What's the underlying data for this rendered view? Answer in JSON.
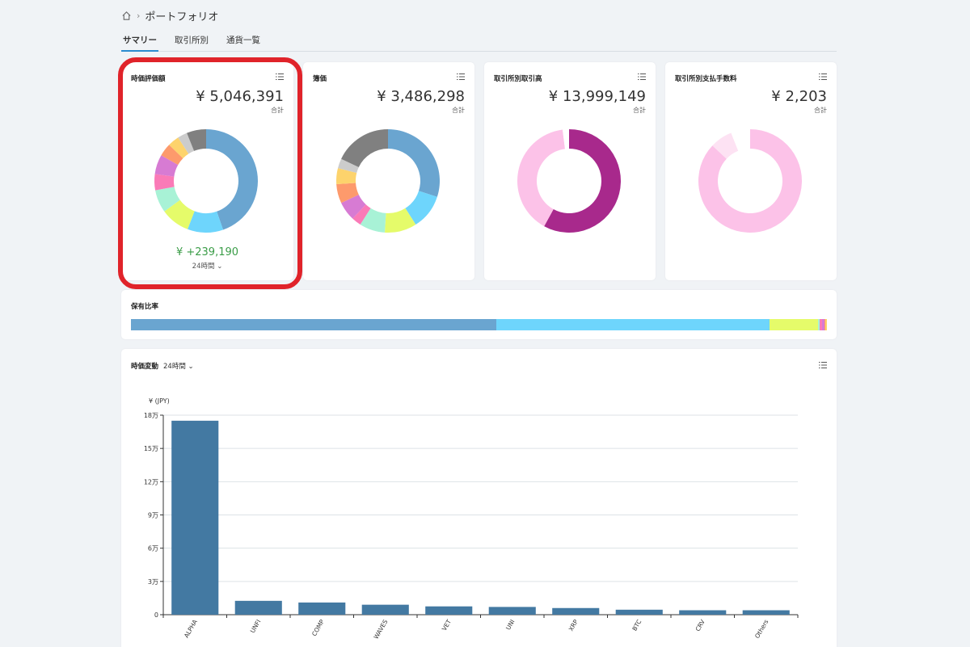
{
  "breadcrumb": {
    "current": "ポートフォリオ"
  },
  "tabs": [
    {
      "label": "サマリー",
      "active": true
    },
    {
      "label": "取引所別",
      "active": false
    },
    {
      "label": "通貨一覧",
      "active": false
    }
  ],
  "cards": [
    {
      "title": "時価評価額",
      "amount": "¥ 5,046,391",
      "sub": "合計",
      "change": "¥ +239,190",
      "period": "24時間 ⌄",
      "slices": [
        {
          "value": 44,
          "color": "#6aa5d0"
        },
        {
          "value": 11,
          "color": "#6ed5fc"
        },
        {
          "value": 9,
          "color": "#e5fb6a"
        },
        {
          "value": 7,
          "color": "#a8f2d6"
        },
        {
          "value": 5,
          "color": "#fa7ab7"
        },
        {
          "value": 6,
          "color": "#d77bd3"
        },
        {
          "value": 4,
          "color": "#fd9a6c"
        },
        {
          "value": 3.5,
          "color": "#fdd36c"
        },
        {
          "value": 3,
          "color": "#cccccc"
        },
        {
          "value": 6,
          "color": "#808080"
        }
      ]
    },
    {
      "title": "簿価",
      "amount": "¥ 3,486,298",
      "sub": "合計",
      "slices": [
        {
          "value": 30,
          "color": "#6aa5d0"
        },
        {
          "value": 11,
          "color": "#6ed5fc"
        },
        {
          "value": 10,
          "color": "#e5fb6a"
        },
        {
          "value": 8,
          "color": "#a8f2d6"
        },
        {
          "value": 3,
          "color": "#fa7ab7"
        },
        {
          "value": 6,
          "color": "#d77bd3"
        },
        {
          "value": 6,
          "color": "#fd9a6c"
        },
        {
          "value": 5,
          "color": "#fdd36c"
        },
        {
          "value": 3,
          "color": "#cccccc"
        },
        {
          "value": 18,
          "color": "#808080"
        }
      ]
    },
    {
      "title": "取引所別取引高",
      "amount": "¥ 13,999,149",
      "sub": "合計",
      "slices": [
        {
          "value": 58,
          "color": "#a8298c"
        },
        {
          "value": 40,
          "color": "#fcc2e8"
        },
        {
          "value": 2,
          "color": "#ffffff"
        }
      ]
    },
    {
      "title": "取引所別支払手数料",
      "amount": "¥ 2,203",
      "sub": "合計",
      "slices": [
        {
          "value": 87,
          "color": "#fcc2e8"
        },
        {
          "value": 7,
          "color": "#fde2f3"
        },
        {
          "value": 6,
          "color": "#ffffff"
        }
      ]
    }
  ],
  "holdings": {
    "title": "保有比率",
    "segments": [
      {
        "value": 52.5,
        "color": "#6aa5d0"
      },
      {
        "value": 39.3,
        "color": "#6ed5fc"
      },
      {
        "value": 6.9,
        "color": "#e5fb6a"
      },
      {
        "value": 0.3,
        "color": "#a8f2d6"
      },
      {
        "value": 0.3,
        "color": "#fa7ab7"
      },
      {
        "value": 0.3,
        "color": "#d77bd3"
      },
      {
        "value": 0.2,
        "color": "#fd9a6c"
      },
      {
        "value": 0.2,
        "color": "#fdd36c"
      }
    ]
  },
  "price_change": {
    "title": "時価変動",
    "period": "24時間 ⌄"
  },
  "chart_data": {
    "type": "bar",
    "ylabel": "¥ (JPY)",
    "categories": [
      "ALPHA",
      "UNFI",
      "COMP",
      "WAVES",
      "VET",
      "UNI",
      "XRP",
      "BTC",
      "CRV",
      "Others"
    ],
    "values": [
      175000,
      12500,
      11000,
      9000,
      7500,
      7000,
      6000,
      4500,
      4000,
      4000
    ],
    "ylim": [
      0,
      180000
    ],
    "yticks": [
      0,
      30000,
      60000,
      90000,
      120000,
      150000,
      180000
    ],
    "ytick_labels": [
      "0",
      "3万",
      "6万",
      "9万",
      "12万",
      "15万",
      "18万"
    ],
    "color": "#4379a2",
    "grid": true
  }
}
